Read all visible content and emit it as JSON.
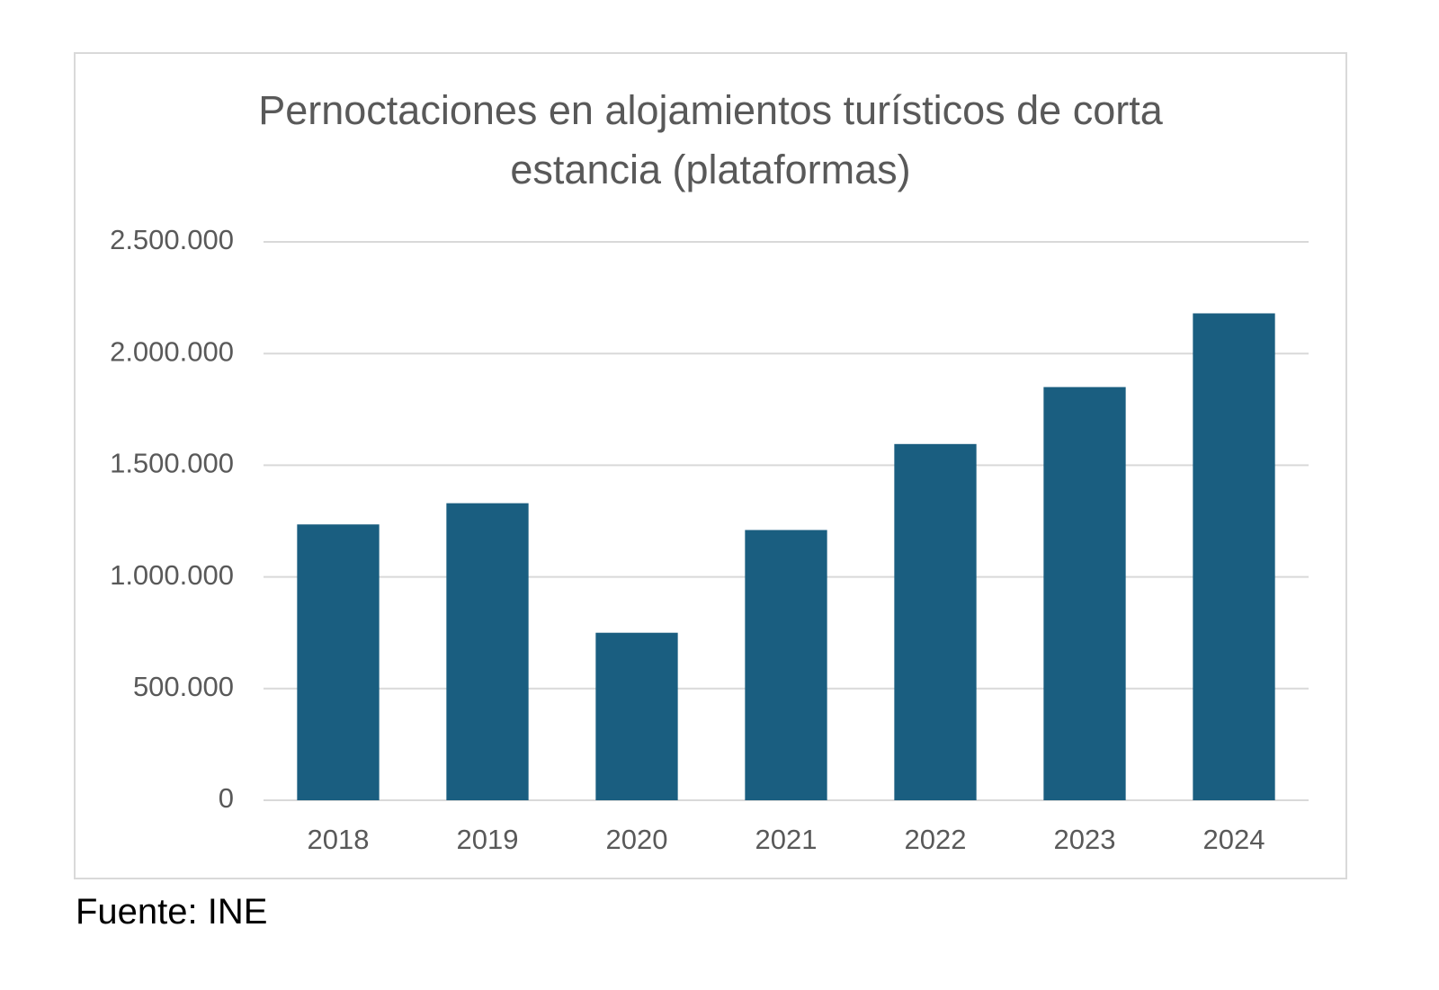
{
  "chart_data": {
    "type": "bar",
    "title": "Pernoctaciones en alojamientos turísticos de corta estancia (plataformas)",
    "categories": [
      "2018",
      "2019",
      "2020",
      "2021",
      "2022",
      "2023",
      "2024"
    ],
    "values": [
      1235000,
      1330000,
      750000,
      1210000,
      1595000,
      1850000,
      2180000
    ],
    "color": "#1a5e80",
    "ylim": [
      0,
      2500000
    ],
    "yticks": [
      0,
      {
        "value": 500000,
        "label": "500.000"
      },
      {
        "value": 1000000,
        "label": "1.000.000"
      },
      {
        "value": 1500000,
        "label": "1.500.000"
      },
      {
        "value": 2000000,
        "label": "2.000.000"
      },
      {
        "value": 2500000,
        "label": "2.500.000"
      }
    ],
    "grid": true
  },
  "source": "Fuente: INE"
}
